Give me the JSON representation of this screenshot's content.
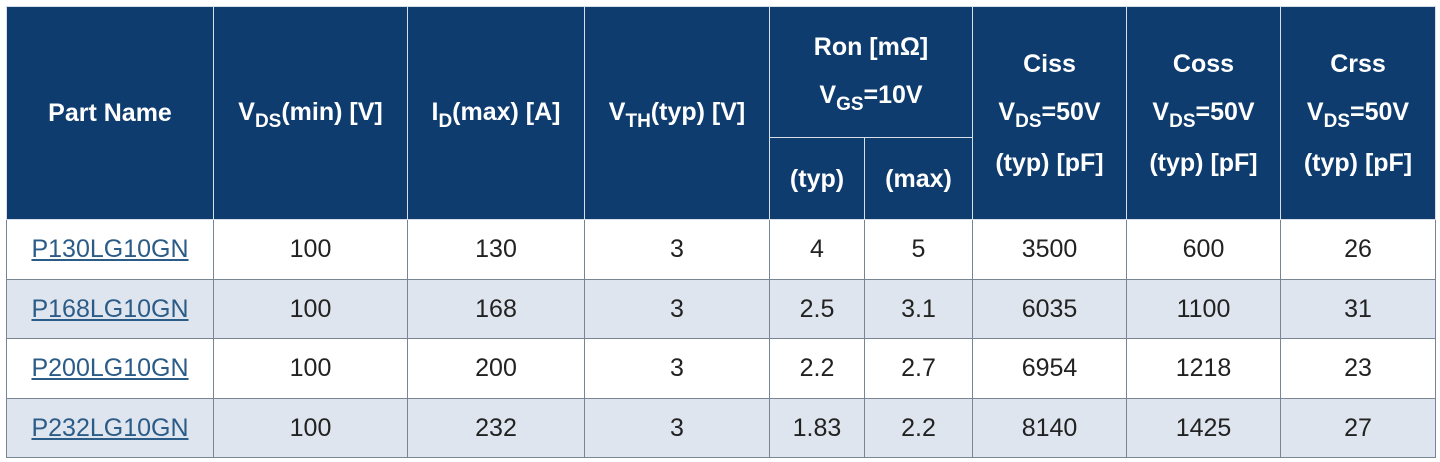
{
  "table": {
    "headers": {
      "part_name": "Part Name",
      "vds": {
        "main": "V",
        "sub": "DS",
        "rest": "(min) [V]"
      },
      "id": {
        "main": "I",
        "sub": "D",
        "rest": "(max) [A]"
      },
      "vth": {
        "main": "V",
        "sub": "TH",
        "rest": "(typ) [V]"
      },
      "ron": {
        "line1": "Ron [mΩ]",
        "line2_main": "V",
        "line2_sub": "GS",
        "line2_rest": "=10V",
        "typ": "(typ)",
        "max": "(max)"
      },
      "ciss": {
        "line1": "Ciss",
        "line2_main": "V",
        "line2_sub": "DS",
        "line2_rest": "=50V",
        "line3": "(typ) [pF]"
      },
      "coss": {
        "line1": "Coss",
        "line2_main": "V",
        "line2_sub": "DS",
        "line2_rest": "=50V",
        "line3": "(typ) [pF]"
      },
      "crss": {
        "line1": "Crss",
        "line2_main": "V",
        "line2_sub": "DS",
        "line2_rest": "=50V",
        "line3": "(typ) [pF]"
      }
    },
    "rows": [
      {
        "part": "P130LG10GN",
        "vds": "100",
        "id": "130",
        "vth": "3",
        "ron_typ": "4",
        "ron_max": "5",
        "ciss": "3500",
        "coss": "600",
        "crss": "26"
      },
      {
        "part": "P168LG10GN",
        "vds": "100",
        "id": "168",
        "vth": "3",
        "ron_typ": "2.5",
        "ron_max": "3.1",
        "ciss": "6035",
        "coss": "1100",
        "crss": "31"
      },
      {
        "part": "P200LG10GN",
        "vds": "100",
        "id": "200",
        "vth": "3",
        "ron_typ": "2.2",
        "ron_max": "2.7",
        "ciss": "6954",
        "coss": "1218",
        "crss": "23"
      },
      {
        "part": "P232LG10GN",
        "vds": "100",
        "id": "232",
        "vth": "3",
        "ron_typ": "1.83",
        "ron_max": "2.2",
        "ciss": "8140",
        "coss": "1425",
        "crss": "27"
      }
    ]
  },
  "colors": {
    "header_bg": "#0e3c6e",
    "row_alt_bg": "#dfe5ee",
    "link": "#2b5b87"
  }
}
